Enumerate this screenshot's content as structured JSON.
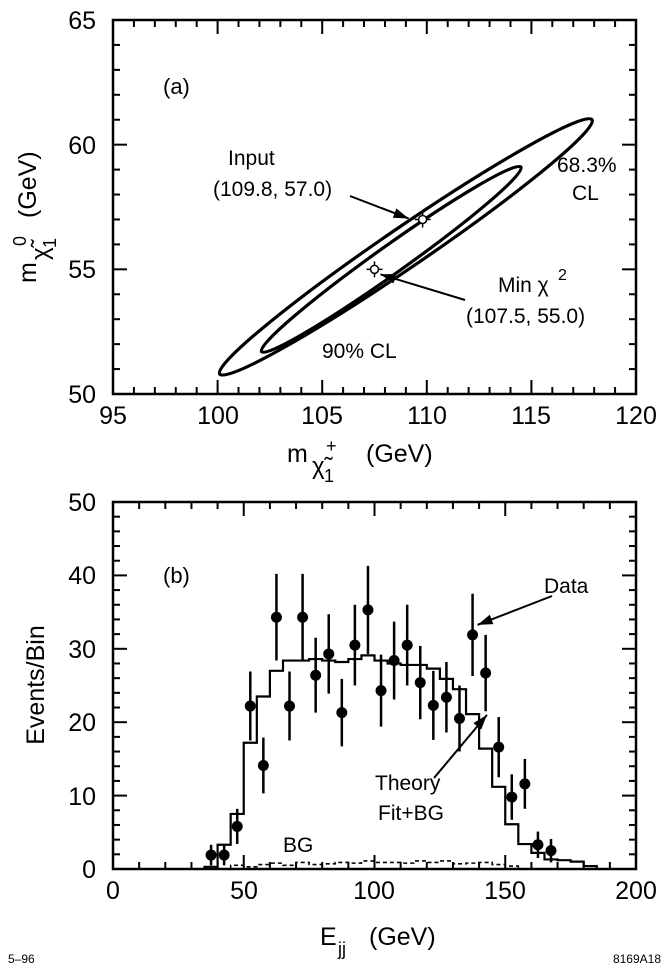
{
  "chart_data": [
    {
      "type": "contour",
      "panel": "(a)",
      "xlabel": "mχ̃₁⁺  (GeV)",
      "ylabel": "mχ̃₁⁰  (GeV)",
      "xlim": [
        95,
        120
      ],
      "ylim": [
        50,
        65
      ],
      "x_ticks": [
        "95",
        "100",
        "105",
        "110",
        "115",
        "120"
      ],
      "y_ticks": [
        "50",
        "55",
        "60",
        "65"
      ],
      "contours": [
        {
          "label": "68.3%",
          "label2": "CL",
          "center": [
            108.3,
            55.4
          ],
          "x_extent": [
            102.2,
            114.6
          ],
          "y_extent": [
            51.7,
            59.1
          ]
        },
        {
          "label": "90% CL",
          "center": [
            109.0,
            55.9
          ],
          "x_extent": [
            100.2,
            118.0
          ],
          "y_extent": [
            50.8,
            61.0
          ]
        }
      ],
      "points": [
        {
          "label": "Input",
          "coords": "(109.8, 57.0)",
          "x": 109.8,
          "y": 57.0
        },
        {
          "label": "Min χ",
          "superscript": "2",
          "coords": "(107.5, 55.0)",
          "x": 107.5,
          "y": 55.0
        }
      ]
    },
    {
      "type": "histogram",
      "panel": "(b)",
      "xlabel": "E",
      "xlabel_sub": "jj",
      "xlabel_unit": "(GeV)",
      "ylabel": "Events/Bin",
      "xlim": [
        0,
        200
      ],
      "ylim": [
        0,
        50
      ],
      "x_ticks": [
        "0",
        "50",
        "100",
        "150",
        "200"
      ],
      "y_ticks": [
        "0",
        "10",
        "20",
        "30",
        "40",
        "50"
      ],
      "data": {
        "name": "Data",
        "x": [
          37.5,
          42.5,
          47.5,
          52.5,
          57.5,
          62.5,
          67.5,
          72.5,
          77.5,
          82.5,
          87.5,
          92.5,
          97.5,
          102.5,
          107.5,
          112.5,
          117.5,
          122.5,
          127.5,
          132.5,
          137.5,
          142.5,
          147.5,
          152.5,
          157.5,
          162.5,
          167.5
        ],
        "y": [
          1.9,
          1.9,
          5.8,
          22.2,
          14.1,
          34.3,
          22.2,
          34.3,
          26.4,
          29.3,
          21.3,
          30.5,
          35.3,
          24.3,
          28.4,
          30.5,
          25.4,
          22.3,
          23.4,
          20.5,
          31.9,
          26.7,
          16.6,
          9.8,
          11.6,
          3.3,
          2.5
        ],
        "err": [
          1.4,
          1.4,
          2.4,
          4.7,
          3.8,
          5.9,
          4.7,
          5.9,
          5.1,
          5.4,
          4.6,
          5.5,
          6.0,
          4.9,
          5.3,
          5.5,
          5.0,
          4.7,
          4.8,
          4.5,
          5.6,
          5.2,
          4.1,
          3.1,
          3.4,
          1.8,
          1.6
        ]
      },
      "theory": {
        "name": "Theory",
        "name2": "Fit+BG",
        "edges": [
          35,
          40,
          45,
          50,
          55,
          60,
          65,
          70,
          75,
          80,
          85,
          90,
          95,
          100,
          105,
          110,
          115,
          120,
          125,
          130,
          135,
          140,
          145,
          150,
          155,
          160,
          165,
          170,
          175,
          180,
          185
        ],
        "values": [
          0.3,
          3.3,
          7.5,
          17.2,
          23.5,
          27.0,
          28.4,
          28.4,
          28.6,
          28.4,
          28.2,
          28.6,
          29.1,
          28.4,
          28.0,
          27.8,
          27.8,
          27.3,
          25.9,
          24.5,
          21.1,
          16.4,
          11.2,
          6.1,
          3.4,
          2.2,
          1.3,
          1.2,
          1.0,
          0.4
        ]
      },
      "background": {
        "name": "BG",
        "edges": [
          45,
          50,
          55,
          60,
          65,
          70,
          75,
          80,
          85,
          90,
          95,
          100,
          105,
          110,
          115,
          120,
          125,
          130,
          135,
          140,
          145,
          150,
          155
        ],
        "values": [
          0.5,
          0.3,
          0.6,
          0.8,
          0.5,
          0.9,
          0.6,
          0.7,
          0.9,
          0.8,
          1.1,
          0.9,
          0.9,
          0.8,
          1.1,
          0.9,
          1.1,
          0.7,
          0.8,
          0.9,
          0.6,
          0.4
        ]
      },
      "annotation_data": "Data"
    }
  ],
  "footer": {
    "left": "5–96",
    "right": "8169A18"
  }
}
